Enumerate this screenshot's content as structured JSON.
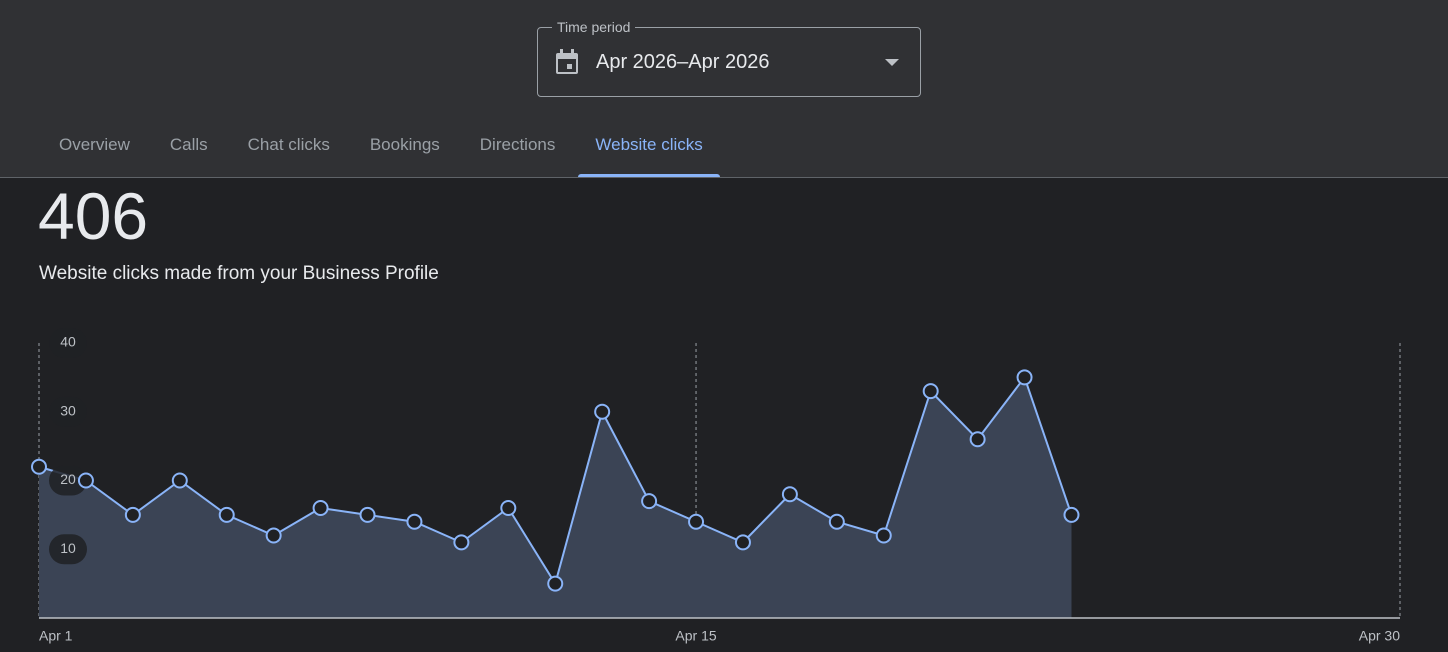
{
  "time_period": {
    "label": "Time period",
    "value": "Apr 2026–Apr 2026"
  },
  "tabs": [
    "Overview",
    "Calls",
    "Chat clicks",
    "Bookings",
    "Directions",
    "Website clicks"
  ],
  "active_tab": 5,
  "total": "406",
  "subtitle": "Website clicks made from your Business Profile",
  "chart_data": {
    "type": "area",
    "color": "#8ab4f8",
    "fill": "#3b4455",
    "x": [
      1,
      2,
      3,
      4,
      5,
      6,
      7,
      8,
      9,
      10,
      11,
      12,
      13,
      14,
      15,
      16,
      17,
      18,
      19,
      20,
      21,
      22,
      23
    ],
    "values": [
      22,
      20,
      15,
      20,
      15,
      12,
      16,
      15,
      14,
      11,
      16,
      5,
      30,
      17,
      14,
      11,
      18,
      14,
      12,
      33,
      26,
      35,
      15
    ],
    "xlim": [
      1,
      30
    ],
    "xticks": [
      {
        "value": 1,
        "label": "Apr 1"
      },
      {
        "value": 15,
        "label": "Apr 15"
      },
      {
        "value": 30,
        "label": "Apr 30"
      }
    ],
    "ylim": [
      0,
      40
    ],
    "yticks": [
      10,
      20,
      30,
      40
    ],
    "grid": true
  }
}
